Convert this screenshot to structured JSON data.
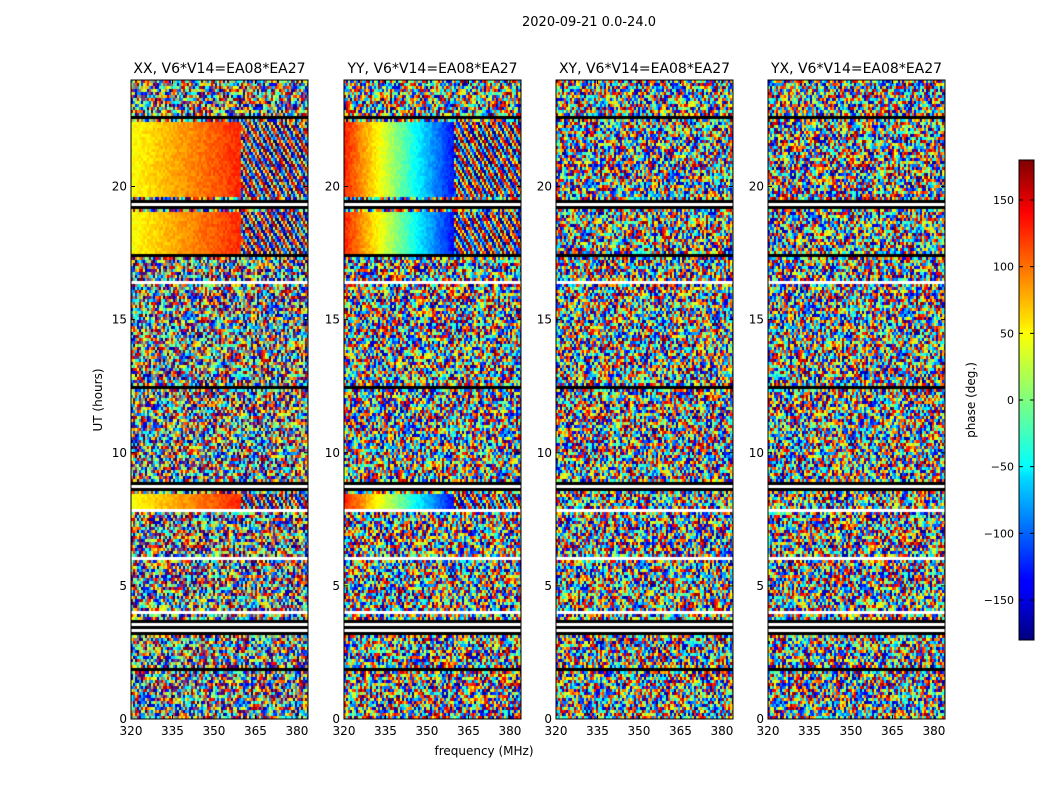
{
  "chart_data": {
    "type": "heatmap",
    "suptitle": "2020-09-21 0.0-24.0",
    "xlabel": "frequency (MHz)",
    "ylabel": "UT (hours)",
    "xlim": [
      320,
      384
    ],
    "ylim": [
      0,
      24
    ],
    "x_ticks": [
      320,
      335,
      350,
      365,
      380
    ],
    "y_ticks": [
      0,
      5,
      10,
      15,
      20
    ],
    "panels": [
      {
        "title": "XX, V6*V14=EA08*EA27",
        "coherent": true,
        "mode": "warm"
      },
      {
        "title": "YY, V6*V14=EA08*EA27",
        "coherent": true,
        "mode": "cool"
      },
      {
        "title": "XY, V6*V14=EA08*EA27",
        "coherent": false,
        "mode": "noise"
      },
      {
        "title": "YX, V6*V14=EA08*EA27",
        "coherent": false,
        "mode": "noise"
      }
    ],
    "coherent_intervals_hours": [
      [
        7.9,
        8.5
      ],
      [
        17.5,
        19.0
      ],
      [
        19.6,
        22.4
      ]
    ],
    "flagged_gaps_hours": [
      [
        8.6,
        8.85
      ],
      [
        7.8,
        7.88
      ],
      [
        17.35,
        17.5
      ],
      [
        19.2,
        19.45
      ],
      [
        22.5,
        22.6
      ],
      [
        3.2,
        3.7
      ],
      [
        4.0,
        4.1
      ],
      [
        1.8,
        1.9
      ],
      [
        6.0,
        6.1
      ],
      [
        12.4,
        12.5
      ],
      [
        16.3,
        16.4
      ]
    ],
    "colorbar": {
      "label": "phase (deg.)",
      "range": [
        -180,
        180
      ],
      "ticks": [
        150,
        100,
        50,
        0,
        -50,
        -100,
        -150
      ],
      "tick_labels": [
        "150",
        "100",
        "50",
        "0",
        "−50",
        "−100",
        "−150"
      ]
    }
  }
}
